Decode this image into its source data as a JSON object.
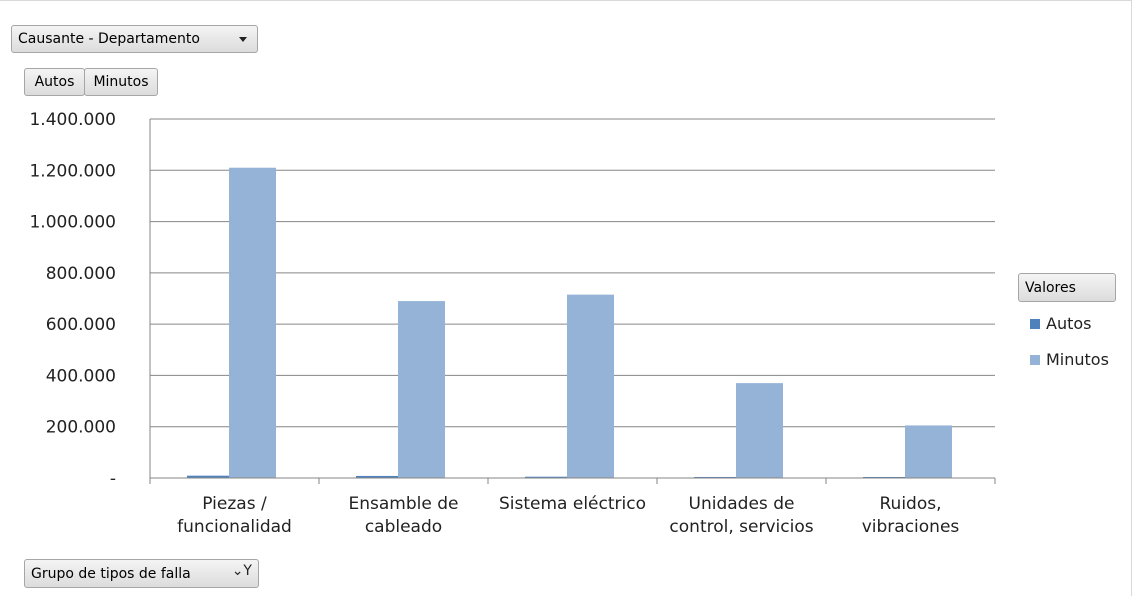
{
  "filters": {
    "axis_field": "Causante - Departamento",
    "value_fields": [
      "Autos",
      "Minutos"
    ],
    "group_field": "Grupo de tipos de falla"
  },
  "legend": {
    "title": "Valores"
  },
  "chart_data": {
    "type": "bar",
    "categories": [
      [
        "Piezas /",
        "funcionalidad"
      ],
      [
        "Ensamble de",
        "cableado"
      ],
      [
        "Sistema eléctrico"
      ],
      [
        "Unidades de",
        "control, servicios"
      ],
      [
        "Ruidos,",
        "vibraciones"
      ]
    ],
    "series": [
      {
        "name": "Autos",
        "color": "#4f81bd",
        "values": [
          9000,
          8000,
          5000,
          4000,
          2000
        ]
      },
      {
        "name": "Minutos",
        "color": "#95b3d7",
        "values": [
          1210000,
          690000,
          715000,
          370000,
          205000
        ]
      }
    ],
    "ylim": [
      0,
      1400000
    ],
    "yticks": [
      {
        "value": 0,
        "label": "-"
      },
      {
        "value": 200000,
        "label": "200.000"
      },
      {
        "value": 400000,
        "label": "400.000"
      },
      {
        "value": 600000,
        "label": "600.000"
      },
      {
        "value": 800000,
        "label": "800.000"
      },
      {
        "value": 1000000,
        "label": "1.000.000"
      },
      {
        "value": 1200000,
        "label": "1.200.000"
      },
      {
        "value": 1400000,
        "label": "1.400.000"
      }
    ],
    "grid": true,
    "legend_position": "right"
  }
}
